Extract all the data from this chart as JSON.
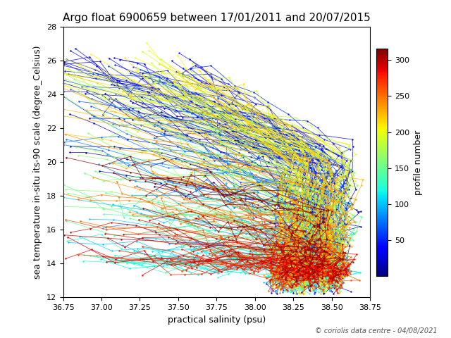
{
  "title": "Argo float 6900659 between 17/01/2011 and 20/07/2015",
  "xlabel": "practical salinity (psu)",
  "ylabel": "sea temperature in-situ its-90 scale (degree_Celsius)",
  "colorbar_label": "profile number",
  "copyright": "© coriolis data centre - 04/08/2021",
  "xlim": [
    36.75,
    38.75
  ],
  "ylim": [
    12,
    28
  ],
  "xticks": [
    36.75,
    37.0,
    37.25,
    37.5,
    37.75,
    38.0,
    38.25,
    38.5,
    38.75
  ],
  "yticks": [
    12,
    14,
    16,
    18,
    20,
    22,
    24,
    26,
    28
  ],
  "cmap": "jet",
  "vmin": 0,
  "vmax": 316,
  "colorbar_ticks": [
    50,
    100,
    150,
    200,
    250,
    300
  ],
  "num_profiles": 316,
  "random_seed": 42,
  "background_color": "white",
  "title_fontsize": 11,
  "label_fontsize": 9,
  "tick_fontsize": 8,
  "copyright_fontsize": 7,
  "figsize": [
    6.4,
    4.8
  ],
  "dpi": 100
}
